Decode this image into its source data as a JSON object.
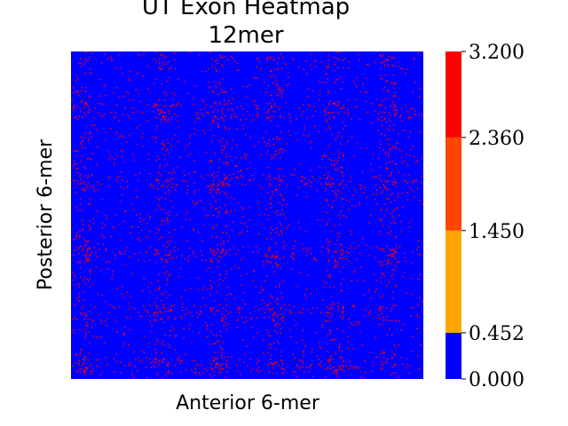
{
  "chart_data": {
    "type": "heatmap",
    "title": "UT Exon Heatmap",
    "subtitle": "12mer",
    "xlabel": "Anterior 6-mer",
    "ylabel": "Posterior 6-mer",
    "value_range": [
      0.0,
      3.2
    ],
    "colorbar": {
      "ticks": [
        "0.000",
        "0.452",
        "1.450",
        "2.360",
        "3.200"
      ],
      "bins": [
        {
          "from": 0.0,
          "to": 0.452,
          "color": "#0000ff"
        },
        {
          "from": 0.452,
          "to": 1.45,
          "color": "#ffa500"
        },
        {
          "from": 1.45,
          "to": 2.36,
          "color": "#ff4500"
        },
        {
          "from": 2.36,
          "to": 3.2,
          "color": "#ff0000"
        }
      ]
    },
    "dominant_color": "#0000ff",
    "speck_color": "#ff0000",
    "grid": false,
    "legend": "colorbar-right"
  }
}
